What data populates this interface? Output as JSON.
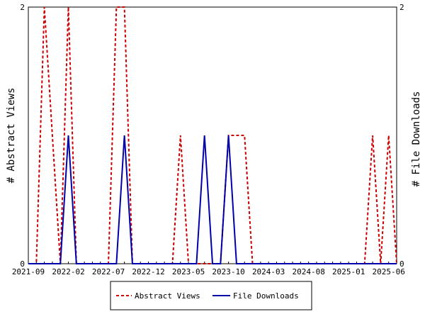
{
  "chart_data": {
    "type": "line",
    "title": "",
    "xlabel": "",
    "ylabel_left": "# Abstract Views",
    "ylabel_right": "# File Downloads",
    "x_tick_labels": [
      "2021-09",
      "2022-02",
      "2022-07",
      "2022-12",
      "2023-05",
      "2023-10",
      "2024-03",
      "2024-08",
      "2025-01",
      "2025-06"
    ],
    "y_left_ticks": [
      "0",
      "2"
    ],
    "y_right_ticks": [
      "0",
      "2"
    ],
    "ylim": [
      0,
      2
    ],
    "legend_position": "bottom",
    "grid": false,
    "x": [
      "2021-09",
      "2021-10",
      "2021-11",
      "2021-12",
      "2022-01",
      "2022-02",
      "2022-03",
      "2022-04",
      "2022-05",
      "2022-06",
      "2022-07",
      "2022-08",
      "2022-09",
      "2022-10",
      "2022-11",
      "2022-12",
      "2023-01",
      "2023-02",
      "2023-03",
      "2023-04",
      "2023-05",
      "2023-06",
      "2023-07",
      "2023-08",
      "2023-09",
      "2023-10",
      "2023-11",
      "2023-12",
      "2024-01",
      "2024-02",
      "2024-03",
      "2024-04",
      "2024-05",
      "2024-06",
      "2024-07",
      "2024-08",
      "2024-09",
      "2024-10",
      "2024-11",
      "2024-12",
      "2025-01",
      "2025-02",
      "2025-03",
      "2025-04",
      "2025-05",
      "2025-06",
      "2025-07"
    ],
    "series": [
      {
        "name": "Abstract Views",
        "color": "#cc0000",
        "dash": "dashed",
        "values": [
          0,
          0,
          2,
          1,
          0,
          2,
          0,
          0,
          0,
          0,
          0,
          2,
          2,
          0,
          0,
          0,
          0,
          0,
          0,
          1,
          0,
          0,
          0,
          0,
          0,
          1,
          1,
          1,
          0,
          0,
          0,
          0,
          0,
          0,
          0,
          0,
          0,
          0,
          0,
          0,
          0,
          0,
          0,
          1,
          0,
          1,
          0
        ]
      },
      {
        "name": "File Downloads",
        "color": "#0000aa",
        "dash": "solid",
        "values": [
          0,
          0,
          0,
          0,
          0,
          1,
          0,
          0,
          0,
          0,
          0,
          0,
          1,
          0,
          0,
          0,
          0,
          0,
          0,
          0,
          0,
          0,
          1,
          0,
          0,
          1,
          0,
          0,
          0,
          0,
          0,
          0,
          0,
          0,
          0,
          0,
          0,
          0,
          0,
          0,
          0,
          0,
          0,
          0,
          0,
          0,
          0
        ]
      }
    ]
  }
}
